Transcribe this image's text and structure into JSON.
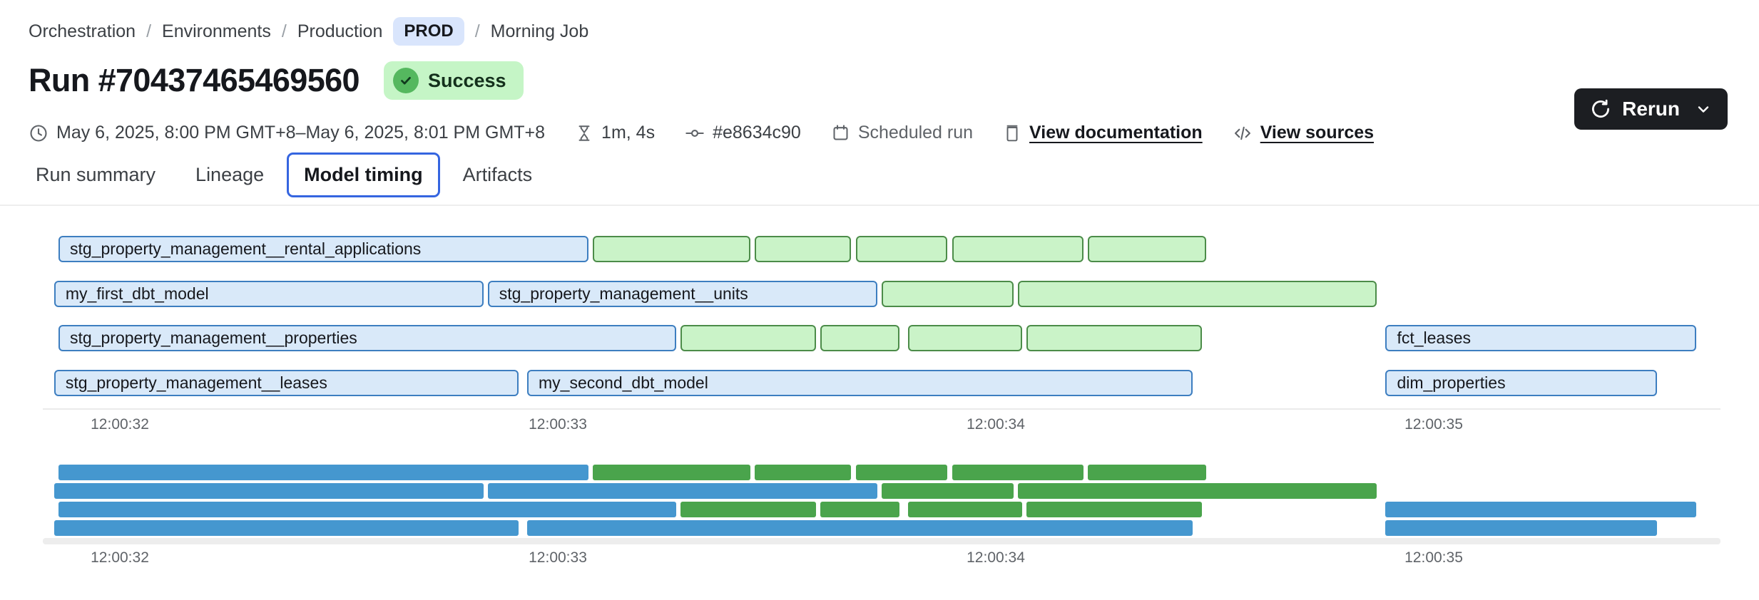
{
  "breadcrumb": {
    "sep": "/",
    "items": [
      "Orchestration",
      "Environments",
      "Production"
    ],
    "env_badge": "PROD",
    "current": "Morning Job"
  },
  "header": {
    "title": "Run #70437465469560",
    "status": "Success"
  },
  "actions": {
    "rerun": "Rerun"
  },
  "meta": {
    "time_range": "May 6, 2025, 8:00 PM GMT+8–May 6, 2025, 8:01 PM GMT+8",
    "duration": "1m, 4s",
    "commit": "#e8634c90",
    "trigger": "Scheduled run",
    "docs_link": "View documentation",
    "sources_link": "View sources"
  },
  "tabs": [
    {
      "label": "Run summary",
      "active": false
    },
    {
      "label": "Lineage",
      "active": false
    },
    {
      "label": "Model timing",
      "active": true
    },
    {
      "label": "Artifacts",
      "active": false
    }
  ],
  "chart_data": {
    "type": "gantt",
    "title": "Model timing",
    "x_ticks": [
      "12:00:32",
      "12:00:33",
      "12:00:34",
      "12:00:35"
    ],
    "tick_seconds": [
      32,
      33,
      34,
      35
    ],
    "colors": {
      "model_bar_fill": "#d9e9f9",
      "model_bar_border": "#3d7ec0",
      "green_bar_fill": "#caf3c8",
      "green_bar_border": "#4c8c49",
      "minimap_blue": "#4597cf",
      "minimap_green": "#4aa44c"
    },
    "rows": [
      {
        "bars": [
          {
            "label": "stg_property_management__rental_applications",
            "color": "blue",
            "start_s": 31.86,
            "end_s": 33.07
          },
          {
            "label": "",
            "color": "green",
            "start_s": 33.08,
            "end_s": 33.44
          },
          {
            "label": "",
            "color": "green",
            "start_s": 33.45,
            "end_s": 33.67
          },
          {
            "label": "",
            "color": "green",
            "start_s": 33.68,
            "end_s": 33.89
          },
          {
            "label": "",
            "color": "green",
            "start_s": 33.9,
            "end_s": 34.2
          },
          {
            "label": "",
            "color": "green",
            "start_s": 34.21,
            "end_s": 34.48
          }
        ]
      },
      {
        "bars": [
          {
            "label": "my_first_dbt_model",
            "color": "blue",
            "start_s": 31.85,
            "end_s": 32.83
          },
          {
            "label": "stg_property_management__units",
            "color": "blue",
            "start_s": 32.84,
            "end_s": 33.73
          },
          {
            "label": "",
            "color": "green",
            "start_s": 33.74,
            "end_s": 34.04
          },
          {
            "label": "",
            "color": "green",
            "start_s": 34.05,
            "end_s": 34.87
          }
        ]
      },
      {
        "bars": [
          {
            "label": "stg_property_management__properties",
            "color": "blue",
            "start_s": 31.86,
            "end_s": 33.27
          },
          {
            "label": "",
            "color": "green",
            "start_s": 33.28,
            "end_s": 33.59
          },
          {
            "label": "",
            "color": "green",
            "start_s": 33.6,
            "end_s": 33.78
          },
          {
            "label": "",
            "color": "green",
            "start_s": 33.8,
            "end_s": 34.06
          },
          {
            "label": "",
            "color": "green",
            "start_s": 34.07,
            "end_s": 34.47
          },
          {
            "label": "fct_leases",
            "color": "blue",
            "start_s": 34.89,
            "end_s": 35.6
          }
        ]
      },
      {
        "bars": [
          {
            "label": "stg_property_management__leases",
            "color": "blue",
            "start_s": 31.85,
            "end_s": 32.91
          },
          {
            "label": "my_second_dbt_model",
            "color": "blue",
            "start_s": 32.93,
            "end_s": 34.45
          },
          {
            "label": "dim_properties",
            "color": "blue",
            "start_s": 34.89,
            "end_s": 35.51
          }
        ]
      }
    ],
    "minimap": {
      "mirrors_main": true,
      "axis_ticks": [
        "12:00:32",
        "12:00:33",
        "12:00:34",
        "12:00:35"
      ]
    }
  }
}
